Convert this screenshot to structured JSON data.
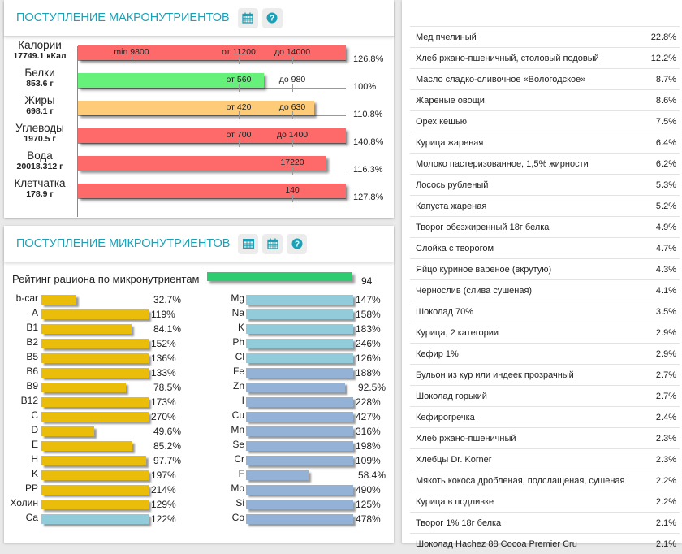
{
  "macro": {
    "title": "Поступление макронутриентов",
    "icons": [
      "calendar-icon",
      "help-icon"
    ],
    "rows": [
      {
        "name": "Калории",
        "value": "17749.1 кКал",
        "fill": 1.0,
        "color": "#fe6a6a",
        "percent": "126.8%",
        "marks": [
          {
            "label": "min 9800",
            "pos": 0.2
          },
          {
            "label": "от 11200",
            "pos": 0.6
          },
          {
            "label": "до 14000",
            "pos": 0.8
          }
        ]
      },
      {
        "name": "Белки",
        "value": "853.6 г",
        "fill": 0.695,
        "color": "#66f27a",
        "percent": "100%",
        "marks": [
          {
            "label": "от 560",
            "pos": 0.6
          },
          {
            "label": "до 980",
            "pos": 0.8
          }
        ]
      },
      {
        "name": "Жиры",
        "value": "698.1 г",
        "fill": 0.882,
        "color": "#fecc78",
        "percent": "110.8%",
        "marks": [
          {
            "label": "от 420",
            "pos": 0.6
          },
          {
            "label": "до 630",
            "pos": 0.8
          }
        ]
      },
      {
        "name": "Углеводы",
        "value": "1970.5 г",
        "fill": 1.0,
        "color": "#fe6a6a",
        "percent": "140.8%",
        "marks": [
          {
            "label": "от 700",
            "pos": 0.6
          },
          {
            "label": "до 1400",
            "pos": 0.8
          }
        ]
      },
      {
        "name": "Вода",
        "value": "20018.312 г",
        "fill": 0.927,
        "color": "#fe6a6a",
        "percent": "116.3%",
        "marks": [
          {
            "label": "17220",
            "pos": 0.8
          }
        ]
      },
      {
        "name": "Клетчатка",
        "value": "178.9 г",
        "fill": 1.0,
        "color": "#fe6a6a",
        "percent": "127.8%",
        "marks": [
          {
            "label": "140",
            "pos": 0.8
          }
        ]
      }
    ]
  },
  "micro": {
    "title": "Поступление микронутриентов",
    "icons": [
      "table-icon",
      "calendar-icon",
      "help-icon"
    ],
    "rating": {
      "label": "Рейтинг рациона по микронутриентам",
      "value": "94",
      "fill": 0.94,
      "color": "#2ecc71"
    },
    "colors": {
      "vitamin": "#ebbd0b",
      "macro_mineral": "#92cbd9",
      "trace_mineral": "#94b1d6"
    },
    "left": [
      {
        "label": "b-car",
        "percent": "32.7%",
        "value": 32.7,
        "kind": "vitamin"
      },
      {
        "label": "A",
        "percent": "119%",
        "value": 119,
        "kind": "vitamin"
      },
      {
        "label": "B1",
        "percent": "84.1%",
        "value": 84.1,
        "kind": "vitamin"
      },
      {
        "label": "B2",
        "percent": "152%",
        "value": 152,
        "kind": "vitamin"
      },
      {
        "label": "B5",
        "percent": "136%",
        "value": 136,
        "kind": "vitamin"
      },
      {
        "label": "B6",
        "percent": "133%",
        "value": 133,
        "kind": "vitamin"
      },
      {
        "label": "B9",
        "percent": "78.5%",
        "value": 78.5,
        "kind": "vitamin"
      },
      {
        "label": "B12",
        "percent": "173%",
        "value": 173,
        "kind": "vitamin"
      },
      {
        "label": "C",
        "percent": "270%",
        "value": 270,
        "kind": "vitamin"
      },
      {
        "label": "D",
        "percent": "49.6%",
        "value": 49.6,
        "kind": "vitamin"
      },
      {
        "label": "E",
        "percent": "85.2%",
        "value": 85.2,
        "kind": "vitamin"
      },
      {
        "label": "H",
        "percent": "97.7%",
        "value": 97.7,
        "kind": "vitamin"
      },
      {
        "label": "K",
        "percent": "197%",
        "value": 197,
        "kind": "vitamin"
      },
      {
        "label": "PP",
        "percent": "214%",
        "value": 214,
        "kind": "vitamin"
      },
      {
        "label": "Холин",
        "percent": "129%",
        "value": 129,
        "kind": "vitamin"
      },
      {
        "label": "Ca",
        "percent": "122%",
        "value": 122,
        "kind": "macro_mineral"
      }
    ],
    "right": [
      {
        "label": "Mg",
        "percent": "147%",
        "value": 147,
        "kind": "macro_mineral"
      },
      {
        "label": "Na",
        "percent": "158%",
        "value": 158,
        "kind": "macro_mineral"
      },
      {
        "label": "K",
        "percent": "183%",
        "value": 183,
        "kind": "macro_mineral"
      },
      {
        "label": "Ph",
        "percent": "246%",
        "value": 246,
        "kind": "macro_mineral"
      },
      {
        "label": "Cl",
        "percent": "126%",
        "value": 126,
        "kind": "macro_mineral"
      },
      {
        "label": "Fe",
        "percent": "188%",
        "value": 188,
        "kind": "trace_mineral"
      },
      {
        "label": "Zn",
        "percent": "92.5%",
        "value": 92.5,
        "kind": "trace_mineral"
      },
      {
        "label": "I",
        "percent": "228%",
        "value": 228,
        "kind": "trace_mineral"
      },
      {
        "label": "Cu",
        "percent": "427%",
        "value": 427,
        "kind": "trace_mineral"
      },
      {
        "label": "Mn",
        "percent": "316%",
        "value": 316,
        "kind": "trace_mineral"
      },
      {
        "label": "Se",
        "percent": "198%",
        "value": 198,
        "kind": "trace_mineral"
      },
      {
        "label": "Cr",
        "percent": "109%",
        "value": 109,
        "kind": "trace_mineral"
      },
      {
        "label": "F",
        "percent": "58.4%",
        "value": 58.4,
        "kind": "trace_mineral"
      },
      {
        "label": "Mo",
        "percent": "490%",
        "value": 490,
        "kind": "trace_mineral"
      },
      {
        "label": "Si",
        "percent": "125%",
        "value": 125,
        "kind": "trace_mineral"
      },
      {
        "label": "Co",
        "percent": "478%",
        "value": 478,
        "kind": "trace_mineral"
      }
    ]
  },
  "foods": [
    {
      "name": "Мед пчелиный",
      "percent": "22.8%"
    },
    {
      "name": "Хлеб ржано-пшеничный, столовый подовый",
      "percent": "12.2%"
    },
    {
      "name": "Масло сладко-сливочное «Вологодское»",
      "percent": "8.7%"
    },
    {
      "name": "Жареные овощи",
      "percent": "8.6%"
    },
    {
      "name": "Орех кешью",
      "percent": "7.5%"
    },
    {
      "name": "Курица жареная",
      "percent": "6.4%"
    },
    {
      "name": "Молоко пастеризованное, 1,5% жирности",
      "percent": "6.2%"
    },
    {
      "name": "Лосось рубленый",
      "percent": "5.3%"
    },
    {
      "name": "Капуста жареная",
      "percent": "5.2%"
    },
    {
      "name": "Творог обезжиренный 18г белка",
      "percent": "4.9%"
    },
    {
      "name": "Слойка с творогом",
      "percent": "4.7%"
    },
    {
      "name": "Яйцо куриное вареное (вкрутую)",
      "percent": "4.3%"
    },
    {
      "name": "Чернослив (слива сушеная)",
      "percent": "4.1%"
    },
    {
      "name": "Шоколад 70%",
      "percent": "3.5%"
    },
    {
      "name": "Курица, 2 категории",
      "percent": "2.9%"
    },
    {
      "name": "Кефир 1%",
      "percent": "2.9%"
    },
    {
      "name": "Бульон из кур или индеек прозрачный",
      "percent": "2.7%"
    },
    {
      "name": "Шоколад горький",
      "percent": "2.7%"
    },
    {
      "name": "Кефирогречка",
      "percent": "2.4%"
    },
    {
      "name": "Хлеб ржано-пшеничный",
      "percent": "2.3%"
    },
    {
      "name": "Хлебцы Dr. Korner",
      "percent": "2.3%"
    },
    {
      "name": "Мякоть кокоса дробленая, подслащеная, сушеная",
      "percent": "2.2%"
    },
    {
      "name": "Курица в подливке",
      "percent": "2.2%"
    },
    {
      "name": "Творог 1% 18г белка",
      "percent": "2.1%"
    },
    {
      "name": "Шоколад Hachez 88 Cocoa Premier Cru",
      "percent": "2.1%"
    }
  ]
}
